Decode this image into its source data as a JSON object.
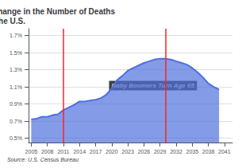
{
  "chart_data": {
    "type": "area",
    "title": "Projected Year-Over-Year Change in the Number of Deaths in the U.S.",
    "source": "Source: U.S. Census Bureau",
    "annotation": {
      "text": "Baby Boomers Turn Age 65",
      "x": 2019.5,
      "y": 0.01115
    },
    "vlines": {
      "x": [
        2011,
        2030
      ],
      "color": "#ff2222"
    },
    "x": [
      2005,
      2006,
      2007,
      2008,
      2009,
      2010,
      2011,
      2012,
      2013,
      2014,
      2015,
      2016,
      2017,
      2018,
      2019,
      2020,
      2021,
      2022,
      2023,
      2024,
      2025,
      2026,
      2027,
      2028,
      2029,
      2030,
      2031,
      2032,
      2033,
      2034,
      2035,
      2036,
      2037,
      2038,
      2039,
      2040
    ],
    "values": [
      0.0072,
      0.0073,
      0.0075,
      0.0075,
      0.0077,
      0.0078,
      0.0083,
      0.0086,
      0.0089,
      0.0093,
      0.0093,
      0.0094,
      0.0095,
      0.0097,
      0.0101,
      0.0108,
      0.0118,
      0.0123,
      0.0129,
      0.0132,
      0.0135,
      0.0138,
      0.014,
      0.0142,
      0.0143,
      0.0143,
      0.0142,
      0.014,
      0.0138,
      0.0136,
      0.0132,
      0.0127,
      0.0121,
      0.0114,
      0.011,
      0.0107
    ],
    "xlim": [
      2004.5,
      2042.5
    ],
    "xticks": [
      2005,
      2008,
      2011,
      2014,
      2017,
      2020,
      2023,
      2026,
      2029,
      2032,
      2035,
      2038,
      2041
    ],
    "ylim": [
      0.0045,
      0.0178
    ],
    "yticks": [
      {
        "value": 0.005,
        "label": "0.5%"
      },
      {
        "value": 0.007,
        "label": "0.7%"
      },
      {
        "value": 0.009,
        "label": "0.9%"
      },
      {
        "value": 0.011,
        "label": "1.1%"
      },
      {
        "value": 0.013,
        "label": "1.3%"
      },
      {
        "value": 0.015,
        "label": "1.5%"
      },
      {
        "value": 0.017,
        "label": "1.7%"
      }
    ],
    "grid": true
  }
}
